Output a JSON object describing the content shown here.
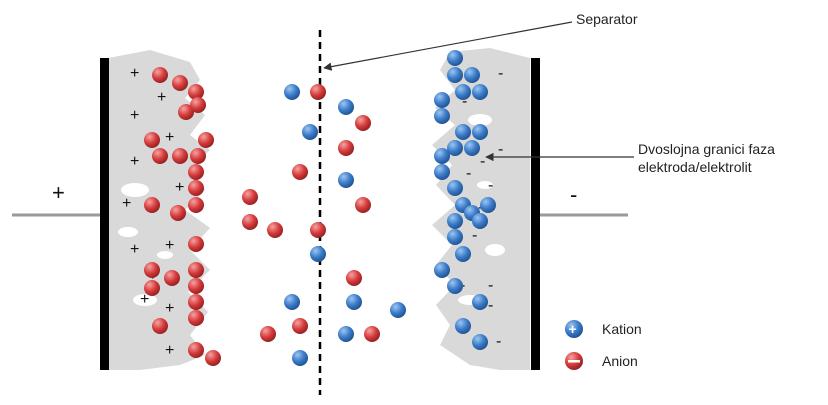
{
  "labels": {
    "separator": "Separator",
    "double_layer_line1": "Dvoslojna granici faza",
    "double_layer_line2": "elektroda/elektrolit",
    "terminal_positive": "+",
    "terminal_negative": "-",
    "plus_sign": "+",
    "minus_sign": "-"
  },
  "legend": {
    "cation": "Kation",
    "anion": "Anion"
  },
  "colors": {
    "cation": "#3a7bc8",
    "anion": "#d63a3a",
    "electrode_layer": "#d9d9d9",
    "electrode_plate": "#000000",
    "wire": "#9a9a9a"
  }
}
